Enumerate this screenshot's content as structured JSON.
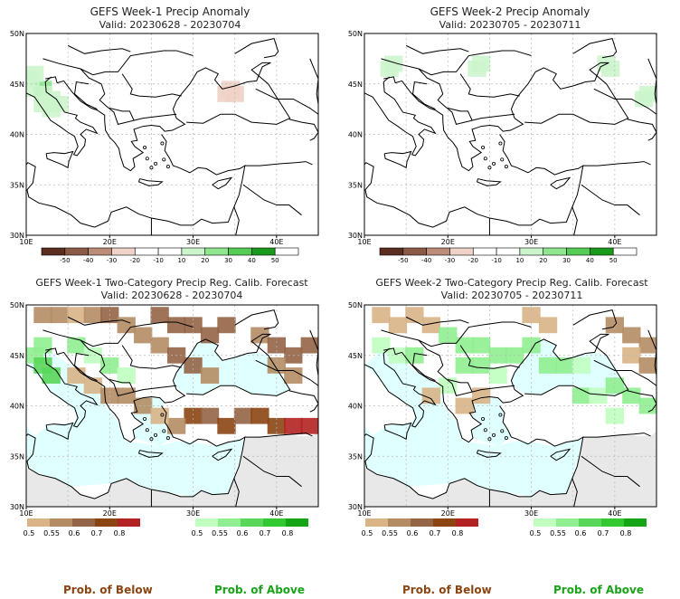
{
  "colors": {
    "below": [
      "#d8b487",
      "#b48c64",
      "#946446",
      "#8b4513",
      "#b22222"
    ],
    "above": [
      "#c0ffc0",
      "#90ee90",
      "#5ad65a",
      "#32c832",
      "#16a516"
    ],
    "anom_below": [
      "#5a2d1e",
      "#8b5a46",
      "#bb8c78",
      "#f0d2c8",
      "#ffffff"
    ],
    "anom_above": [
      "#ffffff",
      "#ccf5cc",
      "#8fe68f",
      "#55cc55",
      "#1a9a1a"
    ],
    "water": "#e0ffff",
    "land_gray": "#e8e8e8",
    "label_below": "#8b4513",
    "label_above": "#1aa31a"
  },
  "chart_data": [
    {
      "type": "heatmap",
      "title": "GEFS Week-1 Precip Anomaly",
      "subtitle": "Valid: 20230628 - 20230704",
      "x_ticks": [
        "10E",
        "20E",
        "30E",
        "40E"
      ],
      "y_ticks": [
        "30N",
        "35N",
        "40N",
        "45N",
        "50N"
      ],
      "xlim": [
        10,
        45
      ],
      "ylim": [
        30,
        50
      ],
      "colorbar_ticks": [
        "-50",
        "-40",
        "-30",
        "-20",
        "-10",
        "10",
        "20",
        "30",
        "40",
        "50"
      ],
      "grid": true,
      "cells": [
        [
          11,
          44.5,
          1
        ],
        [
          12,
          44.5,
          2
        ],
        [
          12,
          44,
          1
        ],
        [
          13,
          43.5,
          1
        ],
        [
          14,
          43,
          1
        ],
        [
          12,
          43,
          1
        ],
        [
          13,
          42.5,
          1
        ],
        [
          11,
          46,
          1
        ],
        [
          10.5,
          45.5,
          1
        ],
        [
          34,
          44,
          -1
        ],
        [
          34.5,
          44.5,
          -1
        ],
        [
          35,
          44,
          -1
        ]
      ]
    },
    {
      "type": "heatmap",
      "title": "GEFS Week-2 Precip Anomaly",
      "subtitle": "Valid: 20230705 - 20230711",
      "x_ticks": [
        "10E",
        "20E",
        "30E",
        "40E"
      ],
      "y_ticks": [
        "30N",
        "35N",
        "40N",
        "45N",
        "50N"
      ],
      "xlim": [
        10,
        45
      ],
      "ylim": [
        30,
        50
      ],
      "colorbar_ticks": [
        "-50",
        "-40",
        "-30",
        "-20",
        "-10",
        "10",
        "20",
        "30",
        "40",
        "50"
      ],
      "grid": true,
      "cells": [
        [
          13,
          46.5,
          1
        ],
        [
          13.5,
          47,
          1
        ],
        [
          24,
          47,
          1
        ],
        [
          23.5,
          46.5,
          1
        ],
        [
          39,
          47,
          1
        ],
        [
          39.5,
          46.5,
          1
        ],
        [
          44,
          44,
          1
        ],
        [
          43.5,
          43.5,
          1
        ]
      ]
    },
    {
      "type": "heatmap",
      "title": "GEFS Week-1 Two-Category Precip Reg. Calib. Forecast",
      "subtitle": "Valid: 20230628 - 20230704",
      "x_ticks": [
        "10E",
        "20E",
        "30E",
        "40E"
      ],
      "y_ticks": [
        "30N",
        "35N",
        "40N",
        "45N",
        "50N"
      ],
      "xlim": [
        10,
        45
      ],
      "ylim": [
        30,
        50
      ],
      "below_ticks": [
        "0.5",
        "0.55",
        "0.6",
        "0.7",
        "0.8"
      ],
      "above_ticks": [
        "0.5",
        "0.55",
        "0.6",
        "0.7",
        "0.8"
      ],
      "grid": true,
      "cells": [
        [
          12,
          49,
          -2
        ],
        [
          14,
          49,
          -2
        ],
        [
          16,
          49,
          -1
        ],
        [
          18,
          49,
          -2
        ],
        [
          20,
          49,
          -3
        ],
        [
          22,
          48,
          -2
        ],
        [
          26,
          49,
          -3
        ],
        [
          28,
          48,
          -3
        ],
        [
          30,
          48,
          -3
        ],
        [
          32,
          47,
          -3
        ],
        [
          34,
          48,
          -3
        ],
        [
          24,
          47,
          -2
        ],
        [
          26,
          46,
          -2
        ],
        [
          28,
          45,
          -3
        ],
        [
          30,
          44,
          -3
        ],
        [
          32,
          43,
          -2
        ],
        [
          38,
          47,
          -2
        ],
        [
          40,
          46,
          -3
        ],
        [
          42,
          45,
          -3
        ],
        [
          44,
          46,
          -3
        ],
        [
          40,
          44,
          -2
        ],
        [
          42,
          43,
          -2
        ],
        [
          11,
          45,
          2
        ],
        [
          12,
          44,
          3
        ],
        [
          13,
          43,
          3
        ],
        [
          12,
          46,
          2
        ],
        [
          16,
          46,
          2
        ],
        [
          18,
          45,
          1
        ],
        [
          20,
          44,
          2
        ],
        [
          22,
          43,
          1
        ],
        [
          16,
          43,
          -1
        ],
        [
          18,
          42,
          -1
        ],
        [
          20,
          41,
          -2
        ],
        [
          22,
          41,
          -2
        ],
        [
          24,
          40,
          -2
        ],
        [
          30,
          39,
          -4
        ],
        [
          32,
          39,
          -3
        ],
        [
          34,
          38,
          -4
        ],
        [
          36,
          39,
          -3
        ],
        [
          38,
          39,
          -4
        ],
        [
          40,
          38,
          -4
        ],
        [
          42,
          38,
          -5
        ],
        [
          44,
          38,
          -5
        ],
        [
          28,
          38,
          -2
        ],
        [
          26,
          39,
          -1
        ]
      ]
    },
    {
      "type": "heatmap",
      "title": "GEFS Week-2 Two-Category Precip Reg. Calib. Forecast",
      "subtitle": "Valid: 20230705 - 20230711",
      "x_ticks": [
        "10E",
        "20E",
        "30E",
        "40E"
      ],
      "y_ticks": [
        "30N",
        "35N",
        "40N",
        "45N",
        "50N"
      ],
      "xlim": [
        10,
        45
      ],
      "ylim": [
        30,
        50
      ],
      "below_ticks": [
        "0.5",
        "0.55",
        "0.6",
        "0.7",
        "0.8"
      ],
      "above_ticks": [
        "0.5",
        "0.55",
        "0.6",
        "0.7",
        "0.8"
      ],
      "grid": true,
      "cells": [
        [
          12,
          49,
          -1
        ],
        [
          14,
          48,
          -1
        ],
        [
          16,
          49,
          -1
        ],
        [
          18,
          48,
          -1
        ],
        [
          30,
          49,
          -1
        ],
        [
          32,
          48,
          -1
        ],
        [
          40,
          48,
          -2
        ],
        [
          42,
          47,
          -2
        ],
        [
          44,
          46,
          -2
        ],
        [
          42,
          45,
          -1
        ],
        [
          44,
          44,
          -2
        ],
        [
          20,
          47,
          2
        ],
        [
          22,
          46,
          2
        ],
        [
          24,
          46,
          2
        ],
        [
          26,
          45,
          2
        ],
        [
          28,
          45,
          2
        ],
        [
          30,
          46,
          2
        ],
        [
          32,
          44,
          2
        ],
        [
          34,
          44,
          2
        ],
        [
          36,
          44,
          1
        ],
        [
          22,
          44,
          2
        ],
        [
          24,
          44,
          2
        ],
        [
          26,
          43,
          1
        ],
        [
          12,
          46,
          1
        ],
        [
          14,
          45,
          1
        ],
        [
          16,
          45,
          2
        ],
        [
          20,
          42,
          1
        ],
        [
          22,
          40,
          -1
        ],
        [
          24,
          41,
          -1
        ],
        [
          18,
          41,
          -1
        ],
        [
          36,
          41,
          2
        ],
        [
          38,
          41,
          1
        ],
        [
          40,
          42,
          2
        ],
        [
          42,
          41,
          2
        ],
        [
          44,
          40,
          2
        ],
        [
          40,
          39,
          1
        ]
      ]
    }
  ],
  "footer": [
    {
      "text": "Prob. of Below",
      "kind": "below"
    },
    {
      "text": "Prob. of Above",
      "kind": "above"
    },
    {
      "text": "Prob. of Below",
      "kind": "below"
    },
    {
      "text": "Prob. of Above",
      "kind": "above"
    }
  ]
}
